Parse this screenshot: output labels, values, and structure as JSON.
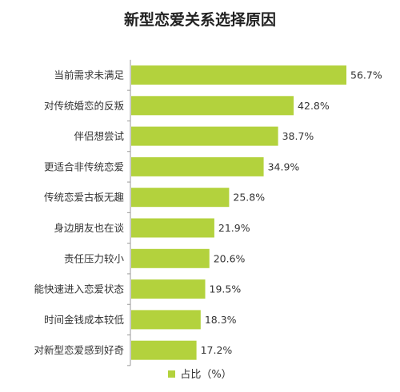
{
  "title": "新型恋爱关系选择原因",
  "colors": {
    "bar": "#b3d23d",
    "axis": "#9a9a9a"
  },
  "legend": {
    "label": "占比（%）"
  },
  "chart_data": {
    "type": "bar",
    "orientation": "horizontal",
    "title": "新型恋爱关系选择原因",
    "categories": [
      "当前需求未满足",
      "对传统婚恋的反叛",
      "伴侣想尝试",
      "更适合非传统恋爱",
      "传统恋爱古板无趣",
      "身边朋友也在谈",
      "责任压力较小",
      "能快速进入恋爱状态",
      "时间金钱成本较低",
      "对新型恋爱感到好奇"
    ],
    "series": [
      {
        "name": "占比（%）",
        "values": [
          56.7,
          42.8,
          38.7,
          34.9,
          25.8,
          21.9,
          20.6,
          19.5,
          18.3,
          17.2
        ],
        "value_labels": [
          "56.7%",
          "42.8%",
          "38.7%",
          "34.9%",
          "25.8%",
          "21.9%",
          "20.6%",
          "19.5%",
          "18.3%",
          "17.2%"
        ]
      }
    ],
    "xlim": [
      0,
      60
    ],
    "grid": false,
    "legend_position": "bottom"
  }
}
